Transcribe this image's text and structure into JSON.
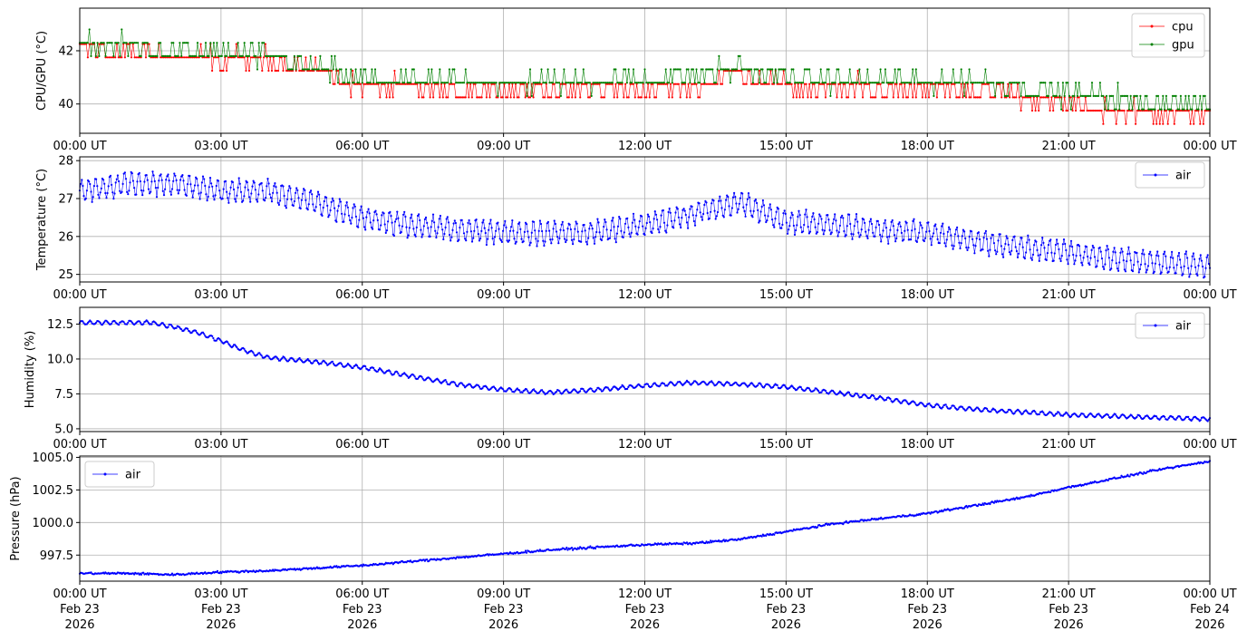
{
  "figure": {
    "x_tick_labels": [
      "00:00 UT",
      "03:00 UT",
      "06:00 UT",
      "09:00 UT",
      "12:00 UT",
      "15:00 UT",
      "18:00 UT",
      "21:00 UT",
      "00:00 UT"
    ],
    "x_tick_date_lines": [
      "Feb 23",
      "Feb 23",
      "Feb 23",
      "Feb 23",
      "Feb 23",
      "Feb 23",
      "Feb 23",
      "Feb 23",
      "Feb 24"
    ],
    "x_tick_year_lines": [
      "2026",
      "2026",
      "2026",
      "2026",
      "2026",
      "2026",
      "2026",
      "2026",
      "2026"
    ]
  },
  "chart_data": [
    {
      "type": "line",
      "ylabel": "CPU/GPU (°C)",
      "xlim": [
        "2026-02-23 00:00 UT",
        "2026-02-24 00:00 UT"
      ],
      "ylim": [
        38.9,
        43.6
      ],
      "yticks": [
        40,
        42
      ],
      "grid": true,
      "legend_position": "top-right",
      "series": [
        {
          "name": "cpu",
          "color": "#ff0000",
          "x_hours": [
            0,
            1,
            2,
            3,
            4,
            5,
            6,
            7,
            8,
            9,
            10,
            11,
            12,
            13,
            14,
            15,
            16,
            17,
            18,
            19,
            20,
            21,
            22,
            23,
            24
          ],
          "values": [
            42.3,
            42.2,
            42.1,
            41.9,
            41.9,
            41.6,
            40.9,
            40.8,
            40.8,
            40.8,
            40.8,
            40.8,
            40.8,
            40.9,
            41.4,
            40.9,
            40.8,
            40.8,
            40.8,
            40.8,
            40.6,
            40.2,
            40.0,
            39.9,
            39.9
          ]
        },
        {
          "name": "gpu",
          "color": "#008000",
          "x_hours": [
            0,
            1,
            2,
            3,
            4,
            5,
            6,
            7,
            8,
            9,
            10,
            11,
            12,
            13,
            14,
            15,
            16,
            17,
            18,
            19,
            20,
            21,
            22,
            23,
            24
          ],
          "values": [
            42.4,
            42.3,
            42.2,
            42.1,
            42.0,
            41.6,
            41.1,
            41.0,
            41.1,
            41.0,
            41.0,
            41.1,
            41.1,
            41.3,
            41.5,
            41.2,
            41.1,
            41.1,
            41.1,
            41.1,
            40.9,
            40.6,
            40.4,
            40.2,
            40.2
          ]
        }
      ]
    },
    {
      "type": "line",
      "ylabel": "Temperature (°C)",
      "xlim": [
        "2026-02-23 00:00 UT",
        "2026-02-24 00:00 UT"
      ],
      "ylim": [
        24.8,
        28.1
      ],
      "yticks": [
        25,
        26,
        27,
        28
      ],
      "grid": true,
      "legend_position": "top-right",
      "series": [
        {
          "name": "air",
          "color": "#0000ff",
          "x_hours": [
            0,
            1,
            2,
            3,
            4,
            5,
            6,
            7,
            8,
            9,
            10,
            11,
            12,
            13,
            14,
            15,
            16,
            17,
            18,
            19,
            20,
            21,
            22,
            23,
            24
          ],
          "values": [
            27.2,
            27.4,
            27.4,
            27.2,
            27.2,
            26.9,
            26.5,
            26.3,
            26.2,
            26.1,
            26.1,
            26.1,
            26.3,
            26.6,
            26.9,
            26.4,
            26.3,
            26.2,
            26.1,
            25.9,
            25.7,
            25.6,
            25.4,
            25.3,
            25.2
          ]
        }
      ]
    },
    {
      "type": "line",
      "ylabel": "Humidity (%)",
      "xlim": [
        "2026-02-23 00:00 UT",
        "2026-02-24 00:00 UT"
      ],
      "ylim": [
        4.8,
        13.7
      ],
      "yticks": [
        5.0,
        7.5,
        10.0,
        12.5
      ],
      "grid": true,
      "legend_position": "top-right",
      "series": [
        {
          "name": "air",
          "color": "#0000ff",
          "x_hours": [
            0,
            1,
            1.5,
            2,
            2.5,
            3,
            3.5,
            4,
            5,
            6,
            7,
            8,
            9,
            10,
            11,
            12,
            13,
            14,
            15,
            16,
            17,
            18,
            19,
            20,
            21,
            22,
            23,
            24
          ],
          "values": [
            12.6,
            12.6,
            12.6,
            12.3,
            11.9,
            11.3,
            10.6,
            10.1,
            9.8,
            9.4,
            8.8,
            8.2,
            7.8,
            7.6,
            7.8,
            8.1,
            8.3,
            8.2,
            8.0,
            7.6,
            7.2,
            6.7,
            6.4,
            6.2,
            6.0,
            5.9,
            5.8,
            5.7
          ]
        }
      ]
    },
    {
      "type": "line",
      "ylabel": "Pressure (hPa)",
      "xlim": [
        "2026-02-23 00:00 UT",
        "2026-02-24 00:00 UT"
      ],
      "ylim": [
        995.5,
        1005.1
      ],
      "yticks": [
        997.5,
        1000.0,
        1002.5,
        1005.0
      ],
      "grid": true,
      "legend_position": "top-left",
      "series": [
        {
          "name": "air",
          "color": "#0000ff",
          "x_hours": [
            0,
            1,
            2,
            3,
            4,
            5,
            6,
            7,
            8,
            9,
            10,
            11,
            12,
            13,
            14,
            15,
            16,
            17,
            18,
            19,
            20,
            21,
            22,
            23,
            24
          ],
          "values": [
            996.1,
            996.1,
            996.0,
            996.2,
            996.3,
            996.5,
            996.7,
            997.0,
            997.3,
            997.6,
            997.9,
            998.1,
            998.3,
            998.4,
            998.7,
            999.3,
            999.9,
            1000.3,
            1000.7,
            1001.3,
            1001.9,
            1002.7,
            1003.4,
            1004.1,
            1004.7
          ]
        }
      ]
    }
  ]
}
